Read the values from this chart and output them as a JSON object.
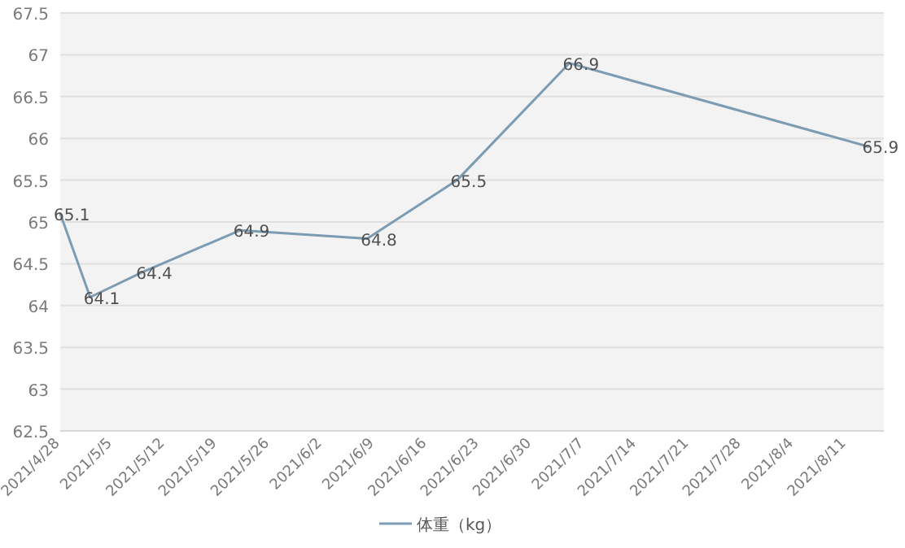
{
  "chart_data": {
    "type": "line",
    "x": [
      "2021-04-28",
      "2021-05-02",
      "2021-05-09",
      "2021-05-22",
      "2021-06-08",
      "2021-06-20",
      "2021-07-05",
      "2021-08-14"
    ],
    "series": [
      {
        "name": "体重（kg）",
        "color": "#7c9cb4",
        "values": [
          65.1,
          64.1,
          64.4,
          64.9,
          64.8,
          65.5,
          66.9,
          65.9
        ]
      }
    ],
    "data_labels": true,
    "xlim": [
      "2021-04-28",
      "2021-08-16"
    ],
    "xticks": [
      {
        "value": "2021-04-28",
        "label": "2021/4/28"
      },
      {
        "value": "2021-05-05",
        "label": "2021/5/5"
      },
      {
        "value": "2021-05-12",
        "label": "2021/5/12"
      },
      {
        "value": "2021-05-19",
        "label": "2021/5/19"
      },
      {
        "value": "2021-05-26",
        "label": "2021/5/26"
      },
      {
        "value": "2021-06-02",
        "label": "2021/6/2"
      },
      {
        "value": "2021-06-09",
        "label": "2021/6/9"
      },
      {
        "value": "2021-06-16",
        "label": "2021/6/16"
      },
      {
        "value": "2021-06-23",
        "label": "2021/6/23"
      },
      {
        "value": "2021-06-30",
        "label": "2021/6/30"
      },
      {
        "value": "2021-07-07",
        "label": "2021/7/7"
      },
      {
        "value": "2021-07-14",
        "label": "2021/7/14"
      },
      {
        "value": "2021-07-21",
        "label": "2021/7/21"
      },
      {
        "value": "2021-07-28",
        "label": "2021/7/28"
      },
      {
        "value": "2021-08-04",
        "label": "2021/8/4"
      },
      {
        "value": "2021-08-11",
        "label": "2021/8/11"
      }
    ],
    "ylim": [
      62.5,
      67.5
    ],
    "yticks": [
      62.5,
      63,
      63.5,
      64,
      64.5,
      65,
      65.5,
      66,
      66.5,
      67,
      67.5
    ],
    "grid": "y",
    "legend": "bottom",
    "marker": "none",
    "line_style": "solid"
  }
}
